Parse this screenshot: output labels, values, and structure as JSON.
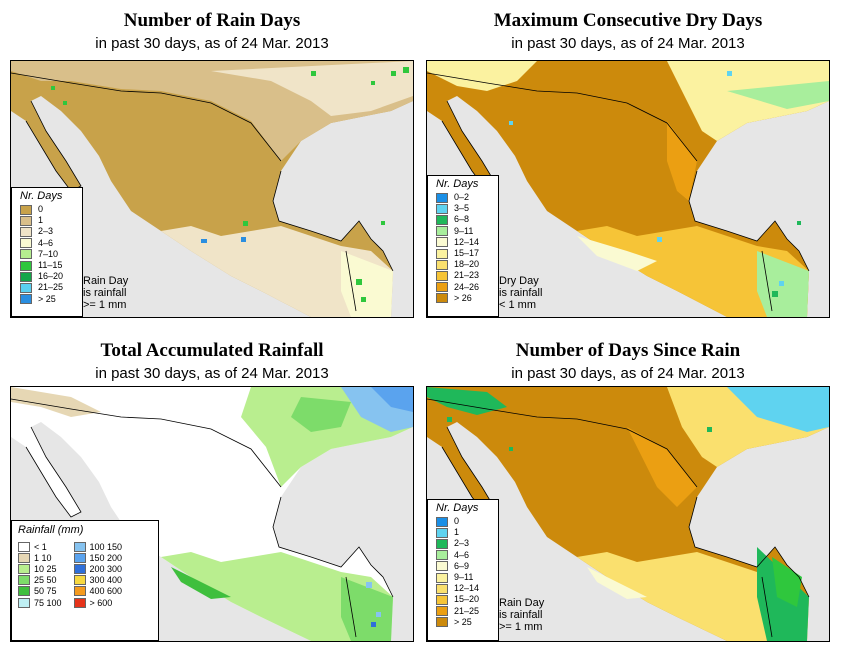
{
  "panels": {
    "rain_days": {
      "title": "Number of Rain Days",
      "subtitle": "in past 30 days, as of  24 Mar. 2013",
      "legend_title": "Nr. Days",
      "legend": [
        {
          "label": "0",
          "color": "#c8a24a"
        },
        {
          "label": "1",
          "color": "#d9bf8a"
        },
        {
          "label": "2–3",
          "color": "#f0e4c8"
        },
        {
          "label": "4–6",
          "color": "#fafad2"
        },
        {
          "label": "7–10",
          "color": "#b5ee8f"
        },
        {
          "label": "11–15",
          "color": "#2fc73d"
        },
        {
          "label": "16–20",
          "color": "#14a64a"
        },
        {
          "label": "21–25",
          "color": "#5ad0f0"
        },
        {
          "label": "> 25",
          "color": "#2a8ee0"
        }
      ],
      "note_lines": [
        "Rain Day",
        "is rainfall",
        ">= 1 mm"
      ]
    },
    "dry_days": {
      "title": "Maximum Consecutive Dry Days",
      "subtitle": "in past 30 days, as of  24 Mar. 2013",
      "legend_title": "Nr. Days",
      "legend": [
        {
          "label": "0–2",
          "color": "#1a8fe6"
        },
        {
          "label": "3–5",
          "color": "#5fd3f0"
        },
        {
          "label": "6–8",
          "color": "#1fb85a"
        },
        {
          "label": "9–11",
          "color": "#a8ee9c"
        },
        {
          "label": "12–14",
          "color": "#fafad2"
        },
        {
          "label": "15–17",
          "color": "#fbf2a0"
        },
        {
          "label": "18–20",
          "color": "#fae06e"
        },
        {
          "label": "21–23",
          "color": "#f6c437"
        },
        {
          "label": "24–26",
          "color": "#eb9f12"
        },
        {
          "label": "> 26",
          "color": "#cc8a0c"
        }
      ],
      "note_lines": [
        "Dry Day",
        "is rainfall",
        "< 1 mm"
      ]
    },
    "rainfall": {
      "title": "Total Accumulated Rainfall",
      "subtitle": "in past 30 days, as of  24 Mar. 2013",
      "legend_title": "Rainfall (mm)",
      "legend_left": [
        {
          "label": "< 1",
          "color": "#ffffff"
        },
        {
          "label": "1    10",
          "color": "#e6d7b4"
        },
        {
          "label": "10    25",
          "color": "#b9ee8f"
        },
        {
          "label": "25    50",
          "color": "#7ddc6a"
        },
        {
          "label": "50    75",
          "color": "#3fbf3d"
        },
        {
          "label": "75   100",
          "color": "#bff0f4"
        }
      ],
      "legend_right": [
        {
          "label": "100   150",
          "color": "#86c3f0"
        },
        {
          "label": "150   200",
          "color": "#5aa3ee"
        },
        {
          "label": "200   300",
          "color": "#2f6fd9"
        },
        {
          "label": "300   400",
          "color": "#f7d840"
        },
        {
          "label": "400   600",
          "color": "#f49a1e"
        },
        {
          "label": "> 600",
          "color": "#e6331a"
        }
      ]
    },
    "since_rain": {
      "title": "Number of Days Since Rain",
      "subtitle": "in past 30 days, as of  24 Mar. 2013",
      "legend_title": "Nr. Days",
      "legend": [
        {
          "label": "0",
          "color": "#1a8fe6"
        },
        {
          "label": "1",
          "color": "#5fd3f0"
        },
        {
          "label": "2–3",
          "color": "#1fb85a"
        },
        {
          "label": "4–6",
          "color": "#a8ee9c"
        },
        {
          "label": "6–9",
          "color": "#fafad2"
        },
        {
          "label": "9–11",
          "color": "#fbf2a0"
        },
        {
          "label": "12–14",
          "color": "#fae06e"
        },
        {
          "label": "15–20",
          "color": "#f6c437"
        },
        {
          "label": "21–25",
          "color": "#eb9f12"
        },
        {
          "label": "> 25",
          "color": "#cc8a0c"
        }
      ],
      "note_lines": [
        "Rain Day",
        "is rainfall",
        ">= 1 mm"
      ]
    }
  },
  "colors": {
    "ocean": "#e6e6e6",
    "outside_land": "#ffffff"
  }
}
